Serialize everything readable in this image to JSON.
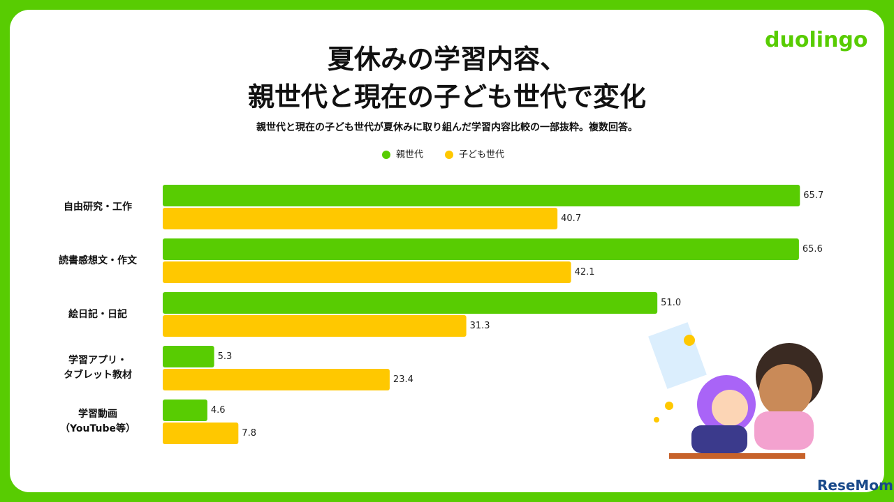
{
  "chart_data": {
    "type": "hbar",
    "title": "夏休みの学習内容、\n親世代と現在の子ども世代で変化",
    "subtitle": "親世代と現在の子ども世代が夏休みに取り組んだ学習内容比較の一部抜粋。複数回答。",
    "brand": "duolingo",
    "watermark": "ReseMom",
    "categories": [
      "自由研究・工作",
      "読書感想文・作文",
      "絵日記・日記",
      "学習アプリ・\nタブレット教材",
      "学習動画\n（YouTube等）"
    ],
    "series": [
      {
        "name": "親世代",
        "color": "#58cc02",
        "values": [
          65.7,
          65.6,
          51.0,
          5.3,
          4.6
        ],
        "value_labels": [
          "65.7",
          "65.6",
          "51.0",
          "5.3",
          "4.6"
        ]
      },
      {
        "name": "子ども世代",
        "color": "#ffc800",
        "values": [
          40.7,
          42.1,
          31.3,
          23.4,
          7.8
        ],
        "value_labels": [
          "40.7",
          "42.1",
          "31.3",
          "23.4",
          "7.8"
        ]
      }
    ],
    "xlim": [
      0,
      70
    ],
    "legend": "top"
  }
}
